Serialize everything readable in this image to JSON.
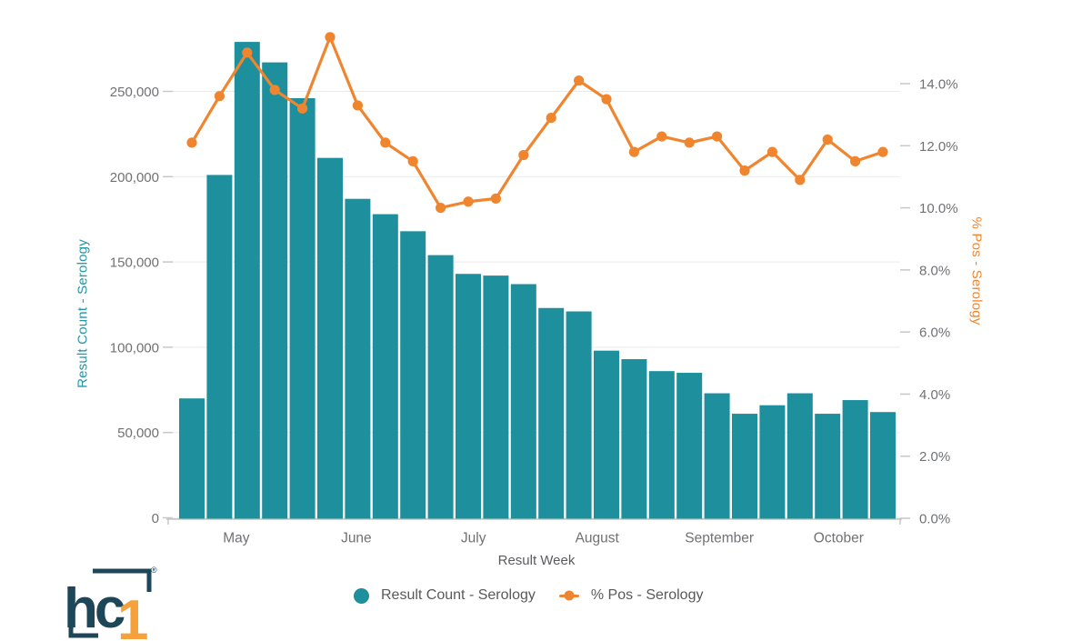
{
  "background": "#ffffff",
  "chart_data": {
    "type": "combo-bar-line",
    "title": "",
    "weeks_count": 26,
    "grid": "horizontal",
    "series": [
      {
        "name": "Result Count - Serology",
        "type": "bar",
        "axis": "left",
        "color": "#1e8f9d",
        "values": [
          70000,
          201000,
          279000,
          267000,
          246000,
          211000,
          187000,
          178000,
          168000,
          154000,
          143000,
          142000,
          137000,
          123000,
          121000,
          98000,
          93000,
          86000,
          85000,
          73000,
          61000,
          66000,
          73000,
          61000,
          69000,
          62000
        ]
      },
      {
        "name": "% Pos - Serology",
        "type": "line",
        "axis": "right",
        "color": "#f08530",
        "values": [
          12.1,
          13.6,
          15.0,
          13.8,
          13.2,
          15.5,
          13.3,
          12.1,
          11.5,
          10.0,
          10.2,
          10.3,
          11.7,
          12.9,
          14.1,
          13.5,
          11.8,
          12.3,
          12.1,
          12.3,
          11.2,
          11.8,
          10.9,
          12.2,
          11.5,
          11.8
        ]
      }
    ],
    "left_axis": {
      "title": "Result Count - Serology",
      "title_color": "#2397a5",
      "ticks": [
        0,
        50000,
        100000,
        150000,
        200000,
        250000
      ],
      "tick_labels": [
        "0",
        "50,000",
        "100,000",
        "150,000",
        "200,000",
        "250,000"
      ],
      "ylim": [
        0,
        296000
      ]
    },
    "right_axis": {
      "title": "% Pos - Serology",
      "title_color": "#f08530",
      "ticks": [
        0,
        2,
        4,
        6,
        8,
        10,
        12,
        14
      ],
      "tick_labels": [
        "0.0%",
        "2.0%",
        "4.0%",
        "6.0%",
        "8.0%",
        "10.0%",
        "12.0%",
        "14.0%"
      ],
      "ylim": [
        0,
        16.3
      ]
    },
    "x_axis": {
      "title": "Result Week",
      "month_labels": [
        "May",
        "June",
        "July",
        "August",
        "September",
        "October"
      ],
      "month_fractions": [
        0.093,
        0.257,
        0.417,
        0.586,
        0.753,
        0.916
      ]
    },
    "legend": [
      {
        "label": "Result Count - Serology",
        "marker": "circle",
        "color": "#1e8f9d"
      },
      {
        "label": "% Pos - Serology",
        "marker": "line-dot",
        "color": "#f08530"
      }
    ],
    "colors": {
      "gridline": "#e9eaea",
      "axis_line": "#c6c8c9",
      "tick_text": "#6f7174"
    }
  },
  "brand": {
    "logo_text_hc": "hc",
    "logo_text_1": "1",
    "registered_mark": "®",
    "navy": "#1d4759",
    "orange": "#f6a13c"
  }
}
